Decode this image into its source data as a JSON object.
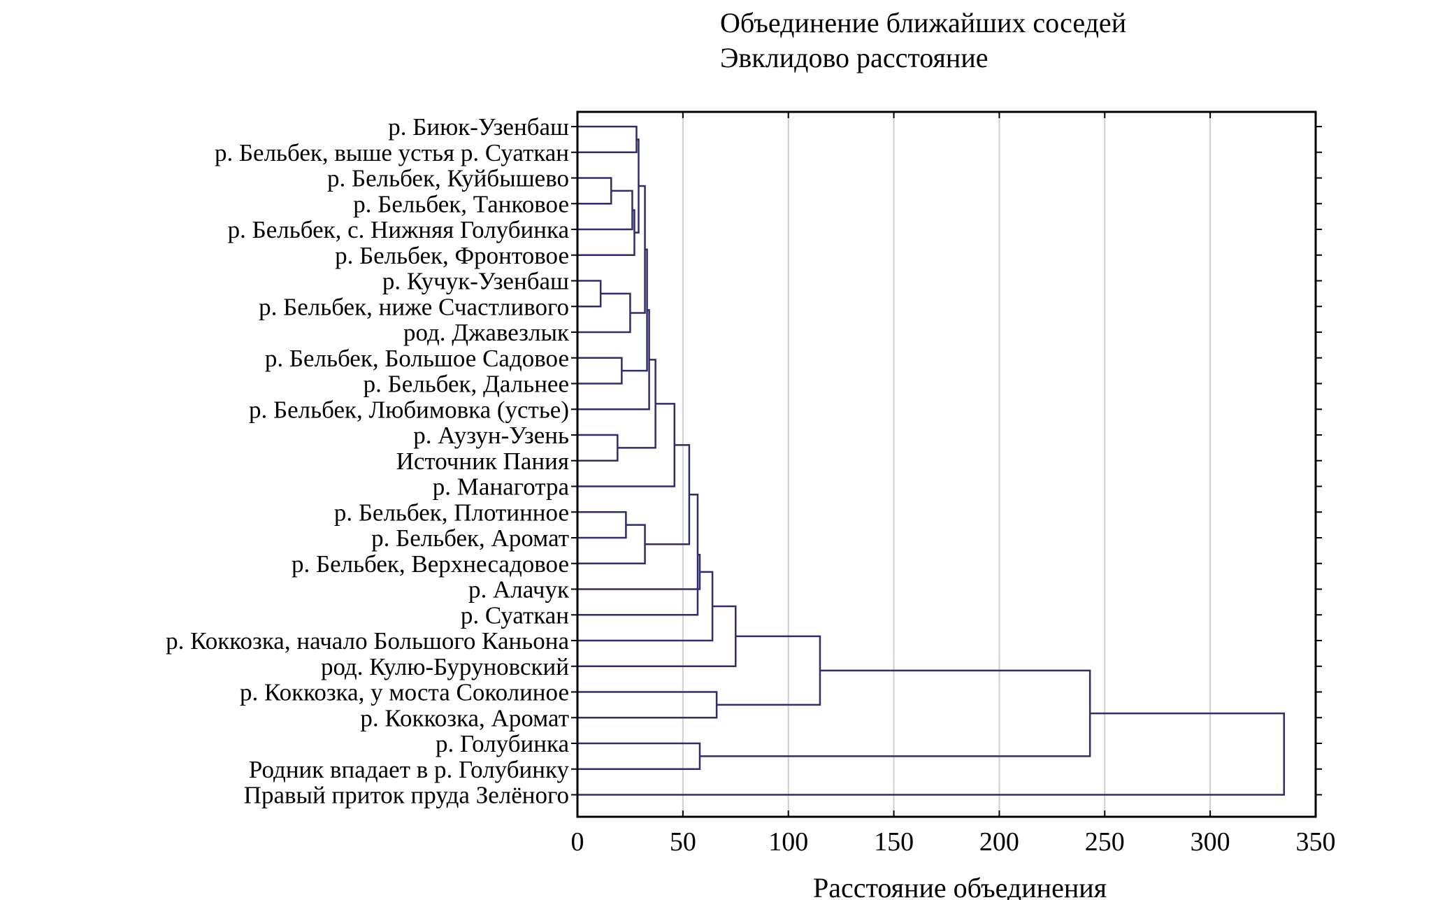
{
  "chart_data": {
    "type": "dendrogram",
    "orientation": "horizontal",
    "title": "Объединение ближайших соседей",
    "subtitle": "Эвклидово расстояние",
    "xlabel": "Расстояние объединения",
    "ylabel": "",
    "xlim": [
      0,
      350
    ],
    "xticks": [
      "0",
      "50",
      "100",
      "150",
      "200",
      "250",
      "300",
      "350"
    ],
    "grid": true,
    "line_color": "#2e2e6e",
    "leaves": [
      "р. Биюк-Узенбаш",
      "р. Бельбек, выше устья р. Суаткан",
      "р. Бельбек, Куйбышево",
      "р. Бельбек, Танковое",
      "р. Бельбек, с. Нижняя Голубинка",
      "р. Бельбек, Фронтовое",
      "р. Кучук-Узенбаш",
      "р. Бельбек, ниже Счастливого",
      "род. Джавезлык",
      "р. Бельбек, Большое Садовое",
      "р. Бельбек, Дальнее",
      "р. Бельбек, Любимовка (устье)",
      "р. Аузун-Узень",
      "Источник Пания",
      "р. Манаготра",
      "р. Бельбек, Плотинное",
      "р. Бельбек, Аромат",
      "р. Бельбек, Верхнесадовое",
      "р. Алачук",
      "р. Суаткан",
      "р. Коккозка, начало Большого Каньона",
      "род. Кулю-Буруновский",
      "р. Коккозка, у моста Соколиное",
      "р. Коккозка, Аромат",
      "р. Голубинка",
      "Родник впадает в р. Голубинку",
      "Правый приток пруда Зелёного"
    ],
    "merges": [
      {
        "left": 6,
        "right": 7,
        "distance": 11
      },
      {
        "left": 2,
        "right": 3,
        "distance": 16
      },
      {
        "left": 12,
        "right": 13,
        "distance": 19
      },
      {
        "left": 9,
        "right": 10,
        "distance": 21
      },
      {
        "left": 15,
        "right": 16,
        "distance": 23
      },
      {
        "left": 27,
        "right": 8,
        "distance": 25
      },
      {
        "left": 28,
        "right": 4,
        "distance": 26
      },
      {
        "left": 33,
        "right": 5,
        "distance": 27
      },
      {
        "left": 0,
        "right": 1,
        "distance": 28
      },
      {
        "left": 35,
        "right": 34,
        "distance": 29
      },
      {
        "left": 36,
        "right": 32,
        "distance": 32
      },
      {
        "left": 31,
        "right": 17,
        "distance": 32
      },
      {
        "left": 37,
        "right": 30,
        "distance": 33
      },
      {
        "left": 39,
        "right": 11,
        "distance": 34
      },
      {
        "left": 40,
        "right": 29,
        "distance": 37
      },
      {
        "left": 41,
        "right": 14,
        "distance": 46
      },
      {
        "left": 42,
        "right": 38,
        "distance": 53
      },
      {
        "left": 43,
        "right": 19,
        "distance": 57
      },
      {
        "left": 44,
        "right": 18,
        "distance": 58
      },
      {
        "left": 24,
        "right": 25,
        "distance": 58
      },
      {
        "left": 45,
        "right": 20,
        "distance": 64
      },
      {
        "left": 22,
        "right": 23,
        "distance": 66
      },
      {
        "left": 47,
        "right": 21,
        "distance": 75
      },
      {
        "left": 49,
        "right": 48,
        "distance": 115
      },
      {
        "left": 50,
        "right": 46,
        "distance": 243
      },
      {
        "left": 51,
        "right": 26,
        "distance": 335
      }
    ]
  }
}
